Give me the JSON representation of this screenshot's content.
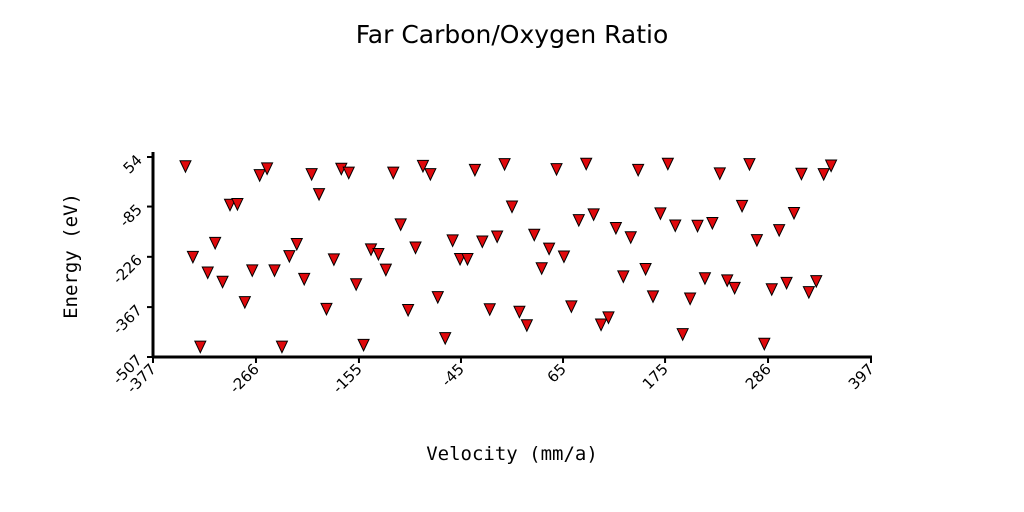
{
  "chart_data": {
    "type": "scatter",
    "title": "Far Carbon/Oxygen Ratio",
    "xlabel": "Velocity (mm/a)",
    "ylabel": "Energy (eV)",
    "xlim": [
      -377,
      397
    ],
    "ylim": [
      -507,
      54
    ],
    "xticks": [
      -377,
      -266,
      -155,
      -45,
      65,
      175,
      286,
      397
    ],
    "yticks": [
      -507,
      -367,
      -226,
      -85,
      54
    ],
    "marker": "triangle-down",
    "marker_color": "#e0090c",
    "grid": false,
    "legend": "none",
    "series": [
      {
        "points": [
          [
            -342,
            28
          ],
          [
            -334,
            -226
          ],
          [
            -326,
            -478
          ],
          [
            -318,
            -270
          ],
          [
            -310,
            -187
          ],
          [
            -302,
            -296
          ],
          [
            -294,
            -80
          ],
          [
            -286,
            -78
          ],
          [
            -278,
            -353
          ],
          [
            -270,
            -264
          ],
          [
            -262,
            3
          ],
          [
            -254,
            22
          ],
          [
            -246,
            -264
          ],
          [
            -238,
            -478
          ],
          [
            -230,
            -224
          ],
          [
            -222,
            -190
          ],
          [
            -214,
            -288
          ],
          [
            -206,
            6
          ],
          [
            -198,
            -50
          ],
          [
            -190,
            -372
          ],
          [
            -182,
            -233
          ],
          [
            -174,
            21
          ],
          [
            -166,
            10
          ],
          [
            -158,
            -303
          ],
          [
            -150,
            -473
          ],
          [
            -142,
            -205
          ],
          [
            -134,
            -218
          ],
          [
            -126,
            -262
          ],
          [
            -118,
            10
          ],
          [
            -110,
            -135
          ],
          [
            -102,
            -375
          ],
          [
            -94,
            -200
          ],
          [
            -86,
            29
          ],
          [
            -78,
            6
          ],
          [
            -70,
            -339
          ],
          [
            -62,
            -454
          ],
          [
            -54,
            -180
          ],
          [
            -46,
            -232
          ],
          [
            -38,
            -232
          ],
          [
            -30,
            18
          ],
          [
            -22,
            -183
          ],
          [
            -14,
            -373
          ],
          [
            -6,
            -169
          ],
          [
            2,
            34
          ],
          [
            10,
            -85
          ],
          [
            18,
            -380
          ],
          [
            26,
            -418
          ],
          [
            34,
            -164
          ],
          [
            42,
            -258
          ],
          [
            50,
            -203
          ],
          [
            58,
            20
          ],
          [
            66,
            -225
          ],
          [
            74,
            -365
          ],
          [
            82,
            -123
          ],
          [
            90,
            35
          ],
          [
            98,
            -107
          ],
          [
            106,
            -416
          ],
          [
            114,
            -396
          ],
          [
            122,
            -145
          ],
          [
            130,
            -281
          ],
          [
            138,
            -171
          ],
          [
            146,
            18
          ],
          [
            154,
            -260
          ],
          [
            162,
            -337
          ],
          [
            170,
            -104
          ],
          [
            178,
            35
          ],
          [
            186,
            -138
          ],
          [
            194,
            -443
          ],
          [
            202,
            -343
          ],
          [
            210,
            -139
          ],
          [
            218,
            -286
          ],
          [
            226,
            -131
          ],
          [
            234,
            8
          ],
          [
            242,
            -292
          ],
          [
            250,
            -313
          ],
          [
            258,
            -83
          ],
          [
            266,
            34
          ],
          [
            274,
            -179
          ],
          [
            282,
            -470
          ],
          [
            290,
            -317
          ],
          [
            298,
            -151
          ],
          [
            306,
            -299
          ],
          [
            314,
            -103
          ],
          [
            322,
            7
          ],
          [
            330,
            -325
          ],
          [
            338,
            -294
          ],
          [
            346,
            6
          ],
          [
            354,
            30
          ]
        ]
      }
    ]
  }
}
